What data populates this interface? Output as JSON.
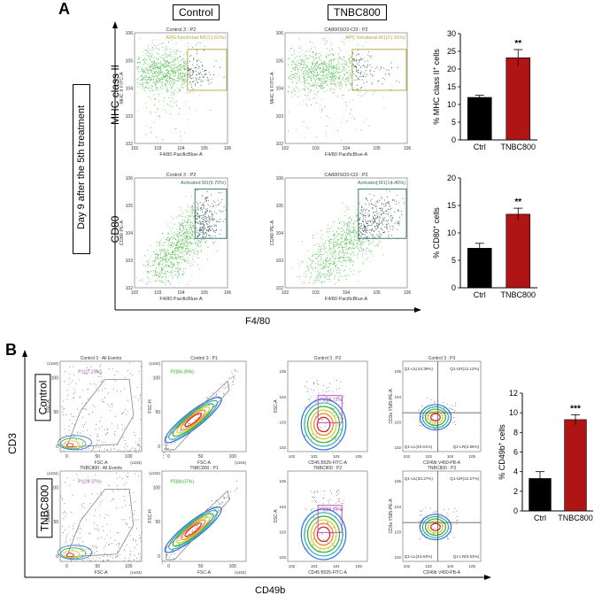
{
  "panel_a": {
    "letter": "A",
    "col_control": "Control",
    "col_tnbc": "TNBC800",
    "side_label": "Day 9 after the 5th treatment",
    "row_mhc": "MHC class II",
    "row_cd80": "CD80",
    "x_axis": "F4/80",
    "plots": [
      {
        "title": "Control 3 : P2",
        "gate": "APC functional M1(11.61%)",
        "xlabel": "F4/80 PacificBlue-A",
        "ylabel": "MHC II FITC-A",
        "gate_color": "#b8a23e"
      },
      {
        "title": "CA800SO3-Cl3 : P2",
        "gate": "APC functional M1(21.91%)",
        "xlabel": "F4/80 PacificBlue-A",
        "ylabel": "MHC II FITC-A",
        "gate_color": "#b8a23e"
      },
      {
        "title": "Control 3 : P2",
        "gate": "Activated M1(9.70%)",
        "xlabel": "F4/80 PacificBlue-A",
        "ylabel": "CD80 PE-A",
        "gate_color": "#2d6f5e"
      },
      {
        "title": "CA800SO3-Cl3 : P2",
        "gate": "Activated M1(14.46%)",
        "xlabel": "F4/80 PacificBlue-A",
        "ylabel": "CD80 PE-A",
        "gate_color": "#2d6f5e"
      }
    ],
    "flow_ticks": [
      "10^2",
      "10^3",
      "10^4",
      "10^5",
      "10^6"
    ]
  },
  "panel_b": {
    "letter": "B",
    "row_control": "Control",
    "row_tnbc": "TNBC800",
    "y_axis": "CD3",
    "x_axis": "CD49b",
    "plots": [
      {
        "title": "Control 3 : All Events",
        "gate": "P1(27.23%)",
        "xlabel": "FSC-A",
        "ylabel": "SSC-A"
      },
      {
        "title": "Control 3 : P1",
        "gate": "P2(84.39%)",
        "xlabel": "FSC-A",
        "ylabel": "FSC-H"
      },
      {
        "title": "Control 3 : P2",
        "gate": "P3(28.72%)",
        "xlabel": "CD45 B525-FITC-A",
        "ylabel": "SSC-A"
      },
      {
        "title": "Control 3 : P3",
        "q_ul": "Q1-UL(44.39%)",
        "q_ur": "Q1-UR(12.12%)",
        "q_ll": "Q1-LL(40.61%)",
        "q_lr": "Q1-LR(2.88%)",
        "xlabel": "CD49b V450-PB-A",
        "ylabel": "CD3e Y585-PE-A"
      },
      {
        "title": "TNBC800 : All Events",
        "gate": "P1(29.37%)",
        "xlabel": "FSC-A",
        "ylabel": "SSC-A"
      },
      {
        "title": "TNBC800 : P1",
        "gate": "P2(84.07%)",
        "xlabel": "FSC-A",
        "ylabel": "FSC-H"
      },
      {
        "title": "TNBC800 : P2",
        "gate": "P3(28.94%)",
        "xlabel": "CD45 B525-FITC-A",
        "ylabel": "SSC-A"
      },
      {
        "title": "TNBC800 : P3",
        "q_ul": "Q1-UL(33.27%)",
        "q_ur": "Q1-UR(12.27%)",
        "q_ll": "Q1-LL(44.93%)",
        "q_lr": "Q1-LR(9.53%)",
        "xlabel": "CD49b V450-PB-A",
        "ylabel": "CD3e Y585-PE-A"
      }
    ],
    "lin_ticks": [
      "0",
      "50",
      "100"
    ],
    "lin_mult": "(x10^4)"
  },
  "chart_data": [
    {
      "type": "bar",
      "categories": [
        "Ctrl",
        "TNBC800"
      ],
      "values": [
        12.0,
        23.2
      ],
      "errors": [
        0.6,
        2.3
      ],
      "colors": [
        "#000000",
        "#b01515"
      ],
      "ylabel": "% MHC class II+ cells",
      "ylim": [
        0,
        30
      ],
      "yticks": [
        0,
        5,
        10,
        15,
        20,
        25,
        30
      ],
      "significance": "**"
    },
    {
      "type": "bar",
      "categories": [
        "Ctrl",
        "TNBC800"
      ],
      "values": [
        7.2,
        13.4
      ],
      "errors": [
        0.9,
        1.1
      ],
      "colors": [
        "#000000",
        "#b01515"
      ],
      "ylabel": "% CD80+ cells",
      "ylim": [
        0,
        20
      ],
      "yticks": [
        0,
        5,
        10,
        15,
        20
      ],
      "significance": "**"
    },
    {
      "type": "bar",
      "categories": [
        "Ctrl",
        "TNBC800"
      ],
      "values": [
        3.3,
        9.3
      ],
      "errors": [
        0.7,
        0.5
      ],
      "colors": [
        "#000000",
        "#b01515"
      ],
      "ylabel": "% CD49b+ cells",
      "ylim": [
        0,
        12
      ],
      "yticks": [
        0,
        2,
        4,
        6,
        8,
        10,
        12
      ],
      "significance": "***"
    }
  ]
}
